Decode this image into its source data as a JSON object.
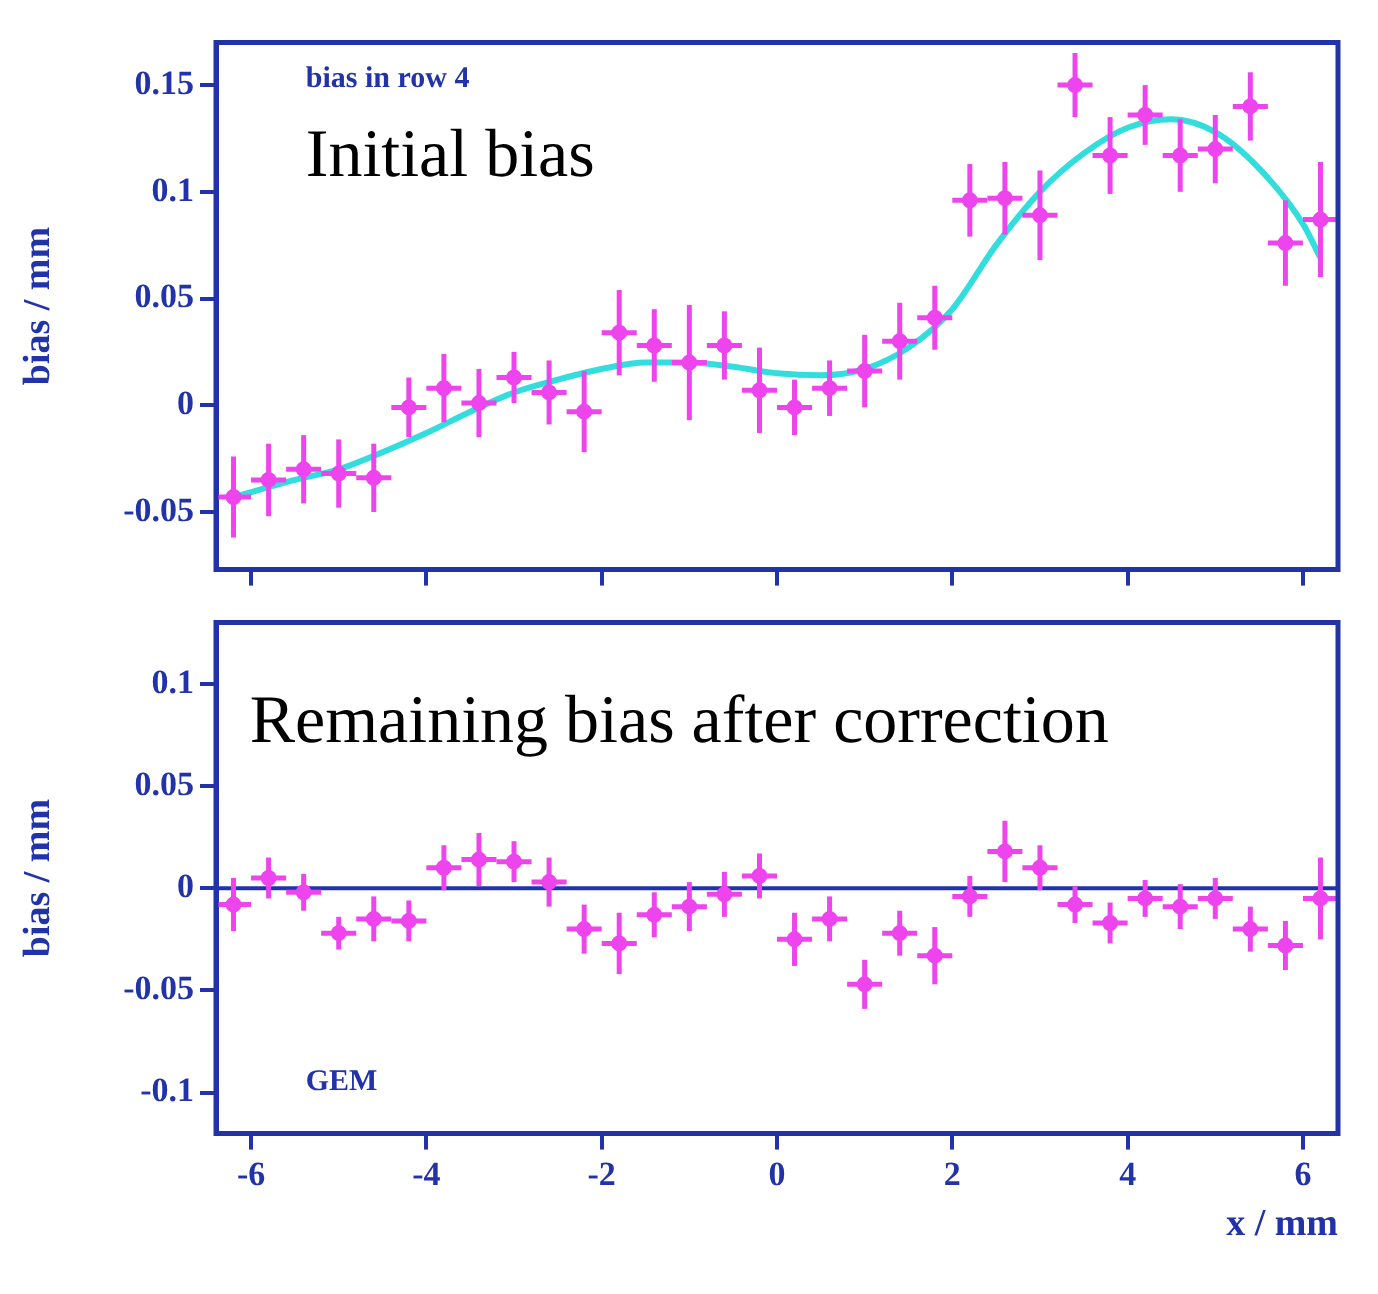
{
  "chart_data": [
    {
      "type": "scatter",
      "ylabel": "bias / mm",
      "xlim": [
        -6.4,
        6.4
      ],
      "xticks": [
        -6,
        -4,
        -2,
        0,
        2,
        4,
        6
      ],
      "ylim": [
        -0.077,
        0.17
      ],
      "yticks": [
        -0.05,
        0,
        0.05,
        0.1,
        0.15
      ],
      "tick_labels": "y",
      "grid": false,
      "legend": false,
      "marker": "circle",
      "annotations": [
        "bias in row 4",
        "Initial bias"
      ],
      "series": [
        {
          "type": "scatter",
          "color": "#ee44ee",
          "x": [
            -6.2,
            -5.8,
            -5.4,
            -5.0,
            -4.6,
            -4.2,
            -3.8,
            -3.4,
            -3.0,
            -2.6,
            -2.2,
            -1.8,
            -1.4,
            -1.0,
            -0.6,
            -0.2,
            0.2,
            0.6,
            1.0,
            1.4,
            1.8,
            2.2,
            2.6,
            3.0,
            3.4,
            3.8,
            4.2,
            4.6,
            5.0,
            5.4,
            5.8,
            6.2
          ],
          "values": [
            -0.043,
            -0.035,
            -0.03,
            -0.032,
            -0.034,
            -0.001,
            0.008,
            0.001,
            0.013,
            0.006,
            -0.003,
            0.034,
            0.028,
            0.02,
            0.028,
            0.007,
            -0.001,
            0.008,
            0.016,
            0.03,
            0.041,
            0.096,
            0.097,
            0.089,
            0.15,
            0.117,
            0.136,
            0.117,
            0.12,
            0.14,
            0.076,
            0.087
          ],
          "errors": [
            0.019,
            0.017,
            0.016,
            0.016,
            0.016,
            0.014,
            0.016,
            0.016,
            0.012,
            0.015,
            0.019,
            0.02,
            0.017,
            0.027,
            0.016,
            0.02,
            0.013,
            0.013,
            0.017,
            0.018,
            0.015,
            0.017,
            0.017,
            0.021,
            0.015,
            0.018,
            0.014,
            0.017,
            0.016,
            0.016,
            0.02,
            0.027
          ],
          "xerrors": [
            0.2,
            0.2,
            0.2,
            0.2,
            0.2,
            0.2,
            0.2,
            0.2,
            0.2,
            0.2,
            0.2,
            0.2,
            0.2,
            0.2,
            0.2,
            0.2,
            0.2,
            0.2,
            0.2,
            0.2,
            0.2,
            0.2,
            0.2,
            0.2,
            0.2,
            0.2,
            0.2,
            0.2,
            0.2,
            0.2,
            0.2,
            0.2
          ]
        },
        {
          "type": "line",
          "color": "#33dddd",
          "marker": "none",
          "x": [
            -6.2,
            -5.5,
            -5,
            -4.5,
            -4,
            -3.5,
            -3,
            -2.5,
            -2,
            -1.5,
            -1,
            -0.5,
            0,
            0.5,
            1,
            1.5,
            2,
            2.5,
            3,
            3.5,
            4,
            4.5,
            5,
            5.5,
            6,
            6.2
          ],
          "values": [
            -0.043,
            -0.035,
            -0.03,
            -0.022,
            -0.013,
            -0.003,
            0.006,
            0.012,
            0.017,
            0.02,
            0.02,
            0.018,
            0.015,
            0.014,
            0.017,
            0.027,
            0.045,
            0.075,
            0.1,
            0.118,
            0.13,
            0.134,
            0.128,
            0.111,
            0.085,
            0.069
          ]
        }
      ]
    },
    {
      "type": "scatter",
      "ylabel": "bias / mm",
      "xlabel": "x / mm",
      "xlim": [
        -6.4,
        6.4
      ],
      "xticks": [
        -6,
        -4,
        -2,
        0,
        2,
        4,
        6
      ],
      "ylim": [
        -0.12,
        0.13
      ],
      "yticks": [
        -0.1,
        -0.05,
        0,
        0.05,
        0.1
      ],
      "grid": false,
      "legend": false,
      "marker": "circle",
      "annotations": [
        "Remaining bias after correction",
        "GEM"
      ],
      "ref_lines": [
        {
          "axis": "y",
          "value": 0,
          "color": "#2233aa"
        }
      ],
      "series": [
        {
          "type": "scatter",
          "color": "#ee44ee",
          "x": [
            -6.2,
            -5.8,
            -5.4,
            -5.0,
            -4.6,
            -4.2,
            -3.8,
            -3.4,
            -3.0,
            -2.6,
            -2.2,
            -1.8,
            -1.4,
            -1.0,
            -0.6,
            -0.2,
            0.2,
            0.6,
            1.0,
            1.4,
            1.8,
            2.2,
            2.6,
            3.0,
            3.4,
            3.8,
            4.2,
            4.6,
            5.0,
            5.4,
            5.8,
            6.2
          ],
          "values": [
            -0.008,
            0.005,
            -0.002,
            -0.022,
            -0.015,
            -0.016,
            0.01,
            0.014,
            0.013,
            0.003,
            -0.02,
            -0.027,
            -0.013,
            -0.009,
            -0.003,
            0.006,
            -0.025,
            -0.015,
            -0.047,
            -0.022,
            -0.033,
            -0.004,
            0.018,
            0.01,
            -0.008,
            -0.017,
            -0.005,
            -0.009,
            -0.005,
            -0.02,
            -0.028,
            -0.005
          ],
          "errors": [
            0.013,
            0.01,
            0.009,
            0.008,
            0.011,
            0.01,
            0.011,
            0.013,
            0.01,
            0.012,
            0.012,
            0.015,
            0.011,
            0.012,
            0.011,
            0.011,
            0.013,
            0.011,
            0.012,
            0.011,
            0.014,
            0.01,
            0.015,
            0.011,
            0.009,
            0.01,
            0.009,
            0.011,
            0.01,
            0.011,
            0.012,
            0.02
          ],
          "xerrors": [
            0.2,
            0.2,
            0.2,
            0.2,
            0.2,
            0.2,
            0.2,
            0.2,
            0.2,
            0.2,
            0.2,
            0.2,
            0.2,
            0.2,
            0.2,
            0.2,
            0.2,
            0.2,
            0.2,
            0.2,
            0.2,
            0.2,
            0.2,
            0.2,
            0.2,
            0.2,
            0.2,
            0.2,
            0.2,
            0.2,
            0.2,
            0.2
          ]
        }
      ]
    }
  ]
}
